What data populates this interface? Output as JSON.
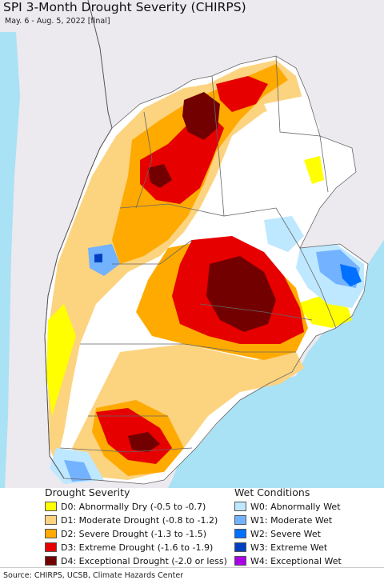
{
  "title": "SPI 3-Month Drought Severity (CHIRPS)",
  "subtitle": "May. 6 - Aug. 5, 2022 [final]",
  "legend": {
    "drought_heading": "Drought Severity",
    "wet_heading": "Wet Conditions",
    "drought": [
      {
        "label": "D0: Abnormally Dry (-0.5 to -0.7)",
        "color": "#ffff00"
      },
      {
        "label": "D1: Moderate Drought (-0.8 to -1.2)",
        "color": "#fcd37f"
      },
      {
        "label": "D2: Severe Drought (-1.3 to -1.5)",
        "color": "#ffaa00"
      },
      {
        "label": "D3: Extreme Drought (-1.6 to -1.9)",
        "color": "#e60000"
      },
      {
        "label": "D4: Exceptional Drought (-2.0 or less)",
        "color": "#730000"
      }
    ],
    "wet": [
      {
        "label": "W0: Abnormally Wet",
        "color": "#bee8ff"
      },
      {
        "label": "W1: Moderate Wet",
        "color": "#73b2ff"
      },
      {
        "label": "W2: Severe Wet",
        "color": "#0070ff"
      },
      {
        "label": "W3: Extreme Wet",
        "color": "#0040c0"
      },
      {
        "label": "W4: Exceptional Wet",
        "color": "#a900e6"
      }
    ]
  },
  "source": "Source: CHIRPS, UCSB, Climate Hazards Center",
  "map_colors": {
    "ocean": "#a9e1f5",
    "outside_land": "#ece9ef",
    "no_drought": "#ffffff",
    "border": "#666666"
  }
}
